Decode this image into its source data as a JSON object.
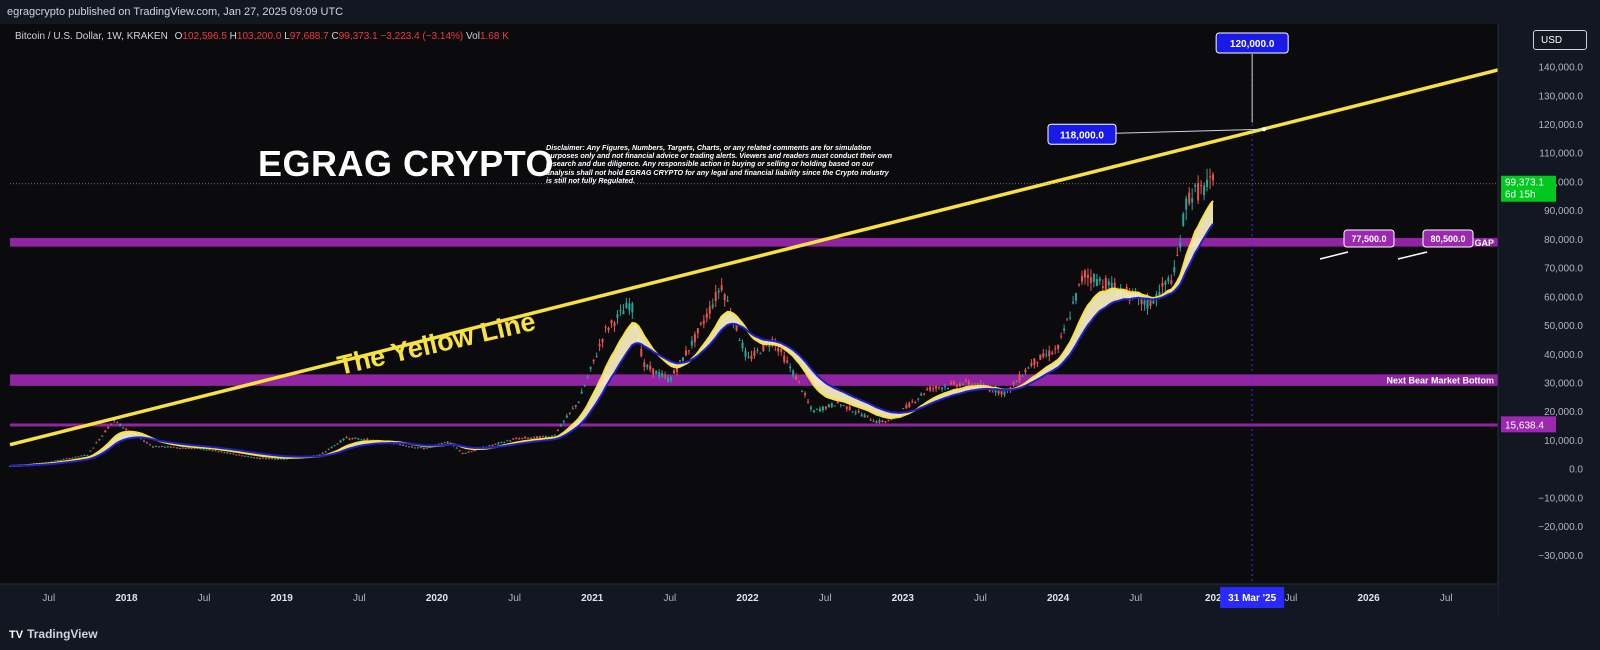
{
  "header": {
    "published": "egragcrypto published on TradingView.com, Jan 27, 2025 09:09 UTC"
  },
  "legend": {
    "symbol": "Bitcoin / U.S. Dollar, 1W, KRAKEN",
    "o_label": "O",
    "o": "102,596.5",
    "h_label": "H",
    "h": "103,200.0",
    "l_label": "L",
    "l": "97,688.7",
    "c_label": "C",
    "c": "99,373.1",
    "change": "−3,223.4 (−3.14%)",
    "vol_label": "Vol",
    "vol": "1.68 K"
  },
  "currency": "USD",
  "brand_title": "EGRAG CRYPTO",
  "disclaimer": "Disclaimer: Any Figures, Numbers, Targets, Charts, or any related comments are for simulation purposes only and not financial advice or trading alerts. Viewers and readers must conduct their own research and due diligence. Any responsible action in buying or selling or holding based on our analysis shall not hold EGRAG CRYPTO for any legal and financial liability since the Crypto industry is still not fully Regulated.",
  "footer": {
    "brand": "TradingView"
  },
  "colors": {
    "yellow_line": "#f7e23f",
    "zone": "#9c27b0",
    "label_blue": "#1a1ae8",
    "label_purple": "#9c27b0",
    "price_badge": "#00c81e",
    "bull": "#26a69a",
    "bear": "#ef5350",
    "ema_blue": "#1f1fcf"
  },
  "chart_data": {
    "type": "candlestick",
    "x_start": "2017-04",
    "x_end": "2026-11",
    "ylim": [
      -40000,
      155000
    ],
    "y_ticks": [
      -30000,
      -20000,
      -10000,
      0,
      10000,
      20000,
      30000,
      40000,
      50000,
      60000,
      70000,
      80000,
      90000,
      100000,
      110000,
      120000,
      130000,
      140000
    ],
    "y_tick_labels": [
      "−30,000.0",
      "−20,000.0",
      "−10,000.0",
      "0.0",
      "10,000.0",
      "20,000.0",
      "30,000.0",
      "40,000.0",
      "50,000.0",
      "60,000.0",
      "70,000.0",
      "80,000.0",
      "90,000.0",
      "100,000.0",
      "110,000.0",
      "120,000.0",
      "130,000.0",
      "140,000.0"
    ],
    "x_ticks": [
      {
        "t": "2017-07",
        "label": "Jul"
      },
      {
        "t": "2018-01",
        "label": "2018"
      },
      {
        "t": "2018-07",
        "label": "Jul"
      },
      {
        "t": "2019-01",
        "label": "2019"
      },
      {
        "t": "2019-07",
        "label": "Jul"
      },
      {
        "t": "2020-01",
        "label": "2020"
      },
      {
        "t": "2020-07",
        "label": "Jul"
      },
      {
        "t": "2021-01",
        "label": "2021"
      },
      {
        "t": "2021-07",
        "label": "Jul"
      },
      {
        "t": "2022-01",
        "label": "2022"
      },
      {
        "t": "2022-07",
        "label": "Jul"
      },
      {
        "t": "2023-01",
        "label": "2023"
      },
      {
        "t": "2023-07",
        "label": "Jul"
      },
      {
        "t": "2024-01",
        "label": "2024"
      },
      {
        "t": "2024-07",
        "label": "Jul"
      },
      {
        "t": "2025-01",
        "label": "202"
      },
      {
        "t": "2025-07",
        "label": "Jul"
      },
      {
        "t": "2026-01",
        "label": "2026"
      },
      {
        "t": "2026-07",
        "label": "Jul"
      }
    ],
    "price_path": [
      [
        "2017-04",
        1100
      ],
      [
        "2017-07",
        2500
      ],
      [
        "2017-10",
        5000
      ],
      [
        "2017-12",
        17000
      ],
      [
        "2018-01",
        14000
      ],
      [
        "2018-03",
        8000
      ],
      [
        "2018-07",
        7000
      ],
      [
        "2018-11",
        4000
      ],
      [
        "2019-01",
        3600
      ],
      [
        "2019-04",
        5000
      ],
      [
        "2019-06",
        11000
      ],
      [
        "2019-09",
        9500
      ],
      [
        "2019-12",
        7200
      ],
      [
        "2020-02",
        9500
      ],
      [
        "2020-03",
        5500
      ],
      [
        "2020-07",
        10500
      ],
      [
        "2020-10",
        11500
      ],
      [
        "2020-12",
        24000
      ],
      [
        "2021-02",
        48000
      ],
      [
        "2021-04",
        58000
      ],
      [
        "2021-05",
        36000
      ],
      [
        "2021-07",
        31000
      ],
      [
        "2021-09",
        46000
      ],
      [
        "2021-11",
        64000
      ],
      [
        "2022-01",
        38000
      ],
      [
        "2022-03",
        45000
      ],
      [
        "2022-05",
        30000
      ],
      [
        "2022-06",
        20000
      ],
      [
        "2022-08",
        23000
      ],
      [
        "2022-11",
        16500
      ],
      [
        "2022-12",
        16800
      ],
      [
        "2023-03",
        28000
      ],
      [
        "2023-06",
        30000
      ],
      [
        "2023-09",
        26500
      ],
      [
        "2023-11",
        37000
      ],
      [
        "2024-01",
        42000
      ],
      [
        "2024-03",
        68000
      ],
      [
        "2024-06",
        62000
      ],
      [
        "2024-08",
        57000
      ],
      [
        "2024-10",
        68000
      ],
      [
        "2024-11",
        95000
      ],
      [
        "2024-12",
        97000
      ],
      [
        "2025-01",
        99373
      ]
    ],
    "series": [
      {
        "name": "EMA fast",
        "color": "#f7e23f"
      },
      {
        "name": "EMA slow",
        "color": "#1f1fcf"
      }
    ],
    "yellow_trendline": {
      "from": [
        "2017-04",
        8500
      ],
      "to": [
        "2026-11",
        139000
      ]
    },
    "zones": [
      {
        "label": "CME GAP",
        "low": 77500,
        "high": 80500
      },
      {
        "label": "Next Bear Market Bottom",
        "low": 29000,
        "high": 33000
      },
      {
        "label": "",
        "low": 15300,
        "high": 15900
      }
    ],
    "annotations": [
      {
        "text": "The Yellow Line"
      },
      {
        "text": "118,000.0",
        "value": 118000
      },
      {
        "text": "120,000.0",
        "value": 120000
      },
      {
        "text": "77,500.0",
        "value": 77500
      },
      {
        "text": "80,500.0",
        "value": 80500
      }
    ],
    "current_price": {
      "value": 99373.1,
      "label": "99,373.1",
      "countdown": "6d 15h"
    },
    "zone_price_label": "15,638.4",
    "vertical_marker": {
      "date": "2025-03-31",
      "label": "31 Mar '25"
    }
  }
}
